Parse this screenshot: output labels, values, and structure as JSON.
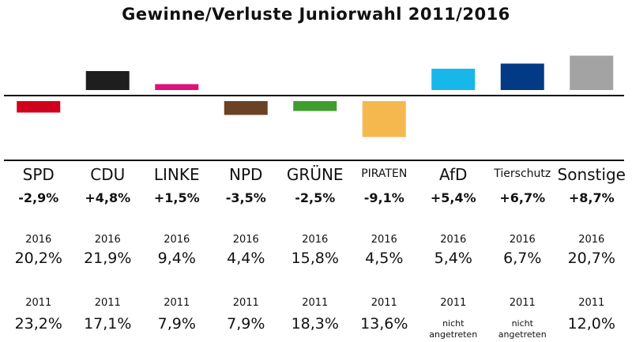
{
  "chart_data": {
    "type": "bar",
    "title": "Gewinne/Verluste Juniorwahl 2011/2016",
    "categories": [
      "SPD",
      "CDU",
      "LINKE",
      "NPD",
      "GRÜNE",
      "PIRATEN",
      "AfD",
      "Tierschutz",
      "Sonstige"
    ],
    "values": [
      -2.9,
      4.8,
      1.5,
      -3.5,
      -2.5,
      -9.1,
      5.4,
      6.7,
      8.7
    ],
    "change_labels": [
      "-2,9%",
      "+4,8%",
      "+1,5%",
      "-3,5%",
      "-2,5%",
      "-9,1%",
      "+5,4%",
      "+6,7%",
      "+8,7%"
    ],
    "colors": [
      "#d0021b",
      "#1e1e1e",
      "#e0107a",
      "#6b4226",
      "#3e9e2e",
      "#f5b84f",
      "#18b7ea",
      "#023a86",
      "#a3a3a3"
    ],
    "ylim": [
      -9.1,
      8.7
    ],
    "year_2016_label": "2016",
    "year_2011_label": "2011",
    "results_2016": [
      "20,2%",
      "21,9%",
      "9,4%",
      "4,4%",
      "15,8%",
      "4,5%",
      "5,4%",
      "6,7%",
      "20,7%"
    ],
    "results_2011": [
      "23,2%",
      "17,1%",
      "7,9%",
      "7,9%",
      "18,3%",
      "13,6%",
      "nicht\nangetreten",
      "nicht\nangetreten",
      "12,0%"
    ]
  }
}
